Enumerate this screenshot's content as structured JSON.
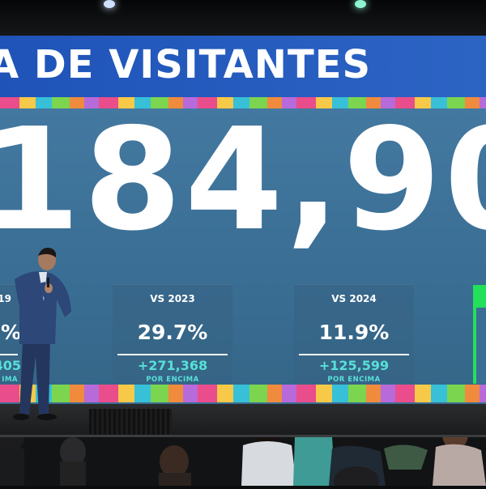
{
  "screen": {
    "title": "A DE VISITANTES",
    "big_number": "184,90",
    "partial_left": {
      "label": "19",
      "percent": "2%",
      "absolute": "405",
      "note": "IMA"
    },
    "boxes": [
      {
        "label": "VS 2023",
        "percent": "29.7%",
        "absolute": "+271,368",
        "note": "POR ENCIMA"
      },
      {
        "label": "VS 2024",
        "percent": "11.9%",
        "absolute": "+125,599",
        "note": "POR ENCIMA"
      }
    ]
  },
  "colors": {
    "title_band": "#1f53b8",
    "screen_panel": "#3a6e94",
    "accent_teal": "#58e0d7",
    "accent_green": "#22e05a"
  }
}
